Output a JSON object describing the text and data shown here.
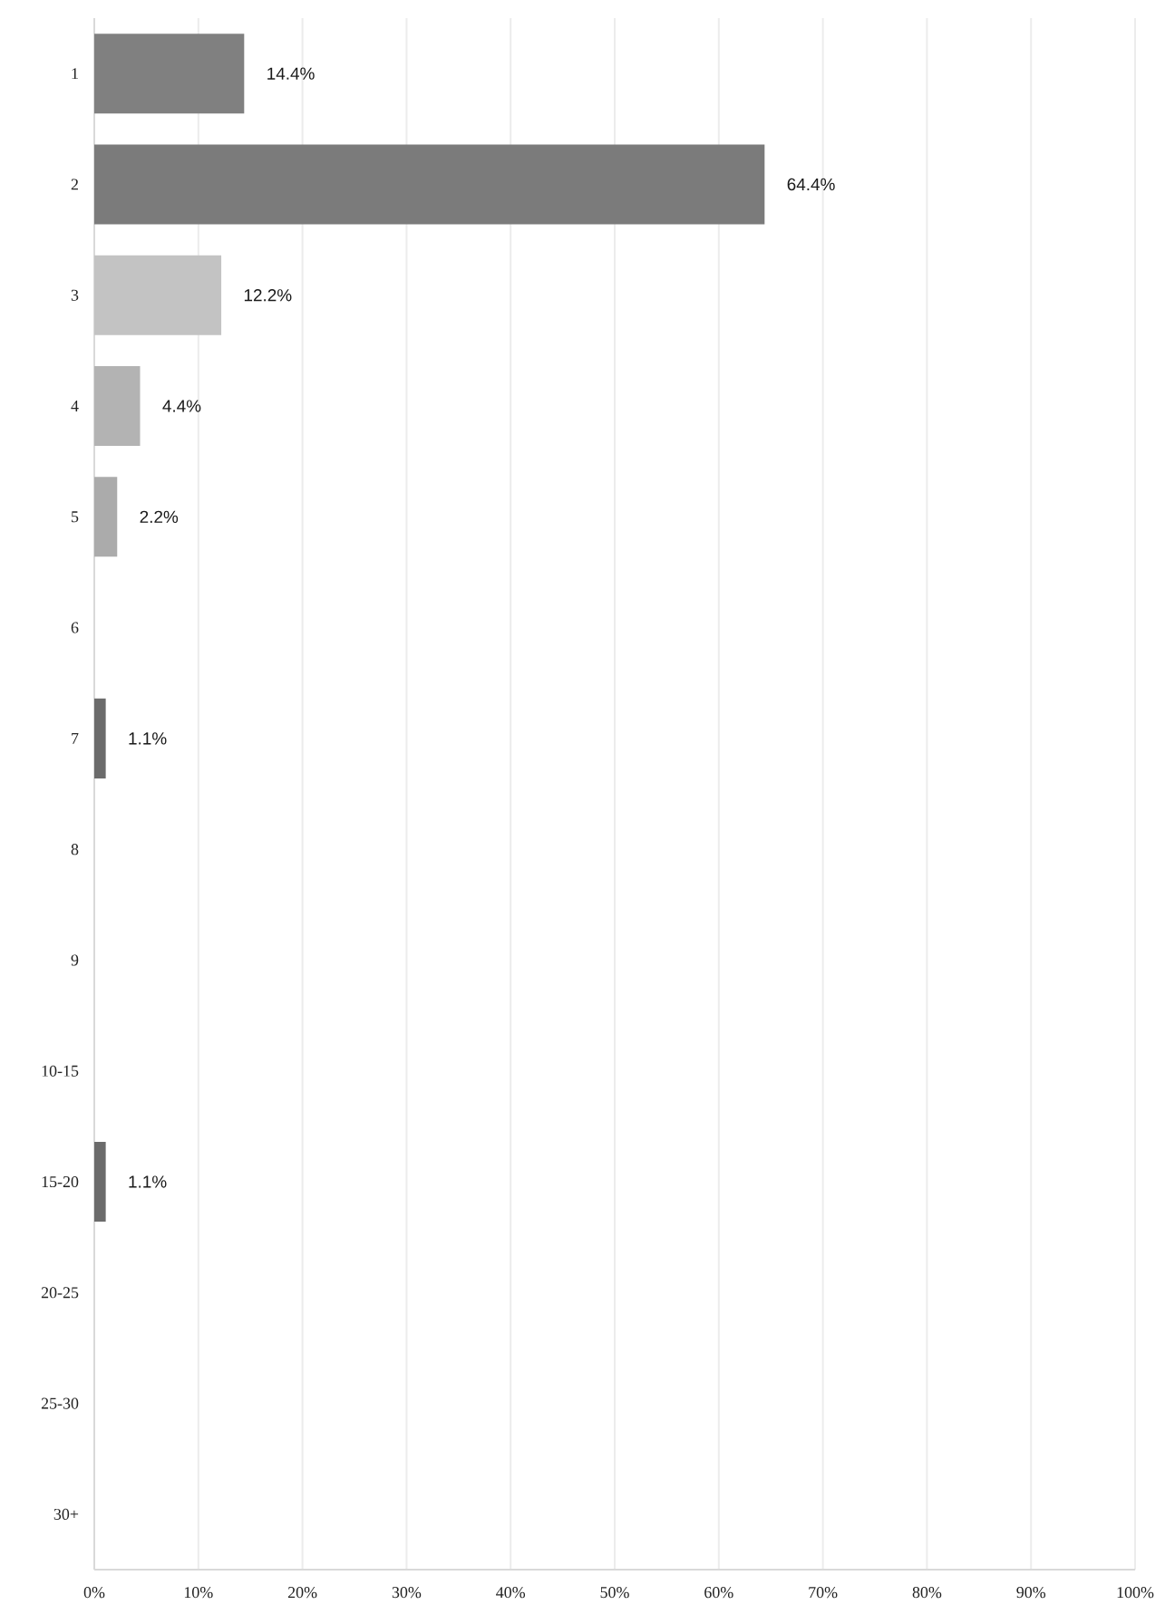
{
  "chart_data": {
    "type": "bar",
    "orientation": "horizontal",
    "categories": [
      "1",
      "2",
      "3",
      "4",
      "5",
      "6",
      "7",
      "8",
      "9",
      "10-15",
      "15-20",
      "20-25",
      "25-30",
      "30+"
    ],
    "values": [
      14.4,
      64.4,
      12.2,
      4.4,
      2.2,
      0,
      1.1,
      0,
      0,
      0,
      1.1,
      0,
      0,
      0
    ],
    "value_labels": [
      "14.4%",
      "64.4%",
      "12.2%",
      "4.4%",
      "2.2%",
      null,
      "1.1%",
      null,
      null,
      null,
      "1.1%",
      null,
      null,
      null
    ],
    "colors": [
      "#808080",
      "#7b7b7b",
      "#c3c3c3",
      "#b3b3b3",
      "#ababab",
      null,
      "#6b6b6b",
      null,
      null,
      null,
      "#6b6b6b",
      null,
      null,
      null
    ],
    "xlim": [
      0,
      100
    ],
    "xticks": [
      {
        "value": 0,
        "label": "0%"
      },
      {
        "value": 10,
        "label": "10%"
      },
      {
        "value": 20,
        "label": "20%"
      },
      {
        "value": 30,
        "label": "30%"
      },
      {
        "value": 40,
        "label": "40%"
      },
      {
        "value": 50,
        "label": "50%"
      },
      {
        "value": 60,
        "label": "60%"
      },
      {
        "value": 70,
        "label": "70%"
      },
      {
        "value": 80,
        "label": "80%"
      },
      {
        "value": 90,
        "label": "90%"
      },
      {
        "value": 100,
        "label": "100%"
      }
    ],
    "grid": "x"
  }
}
